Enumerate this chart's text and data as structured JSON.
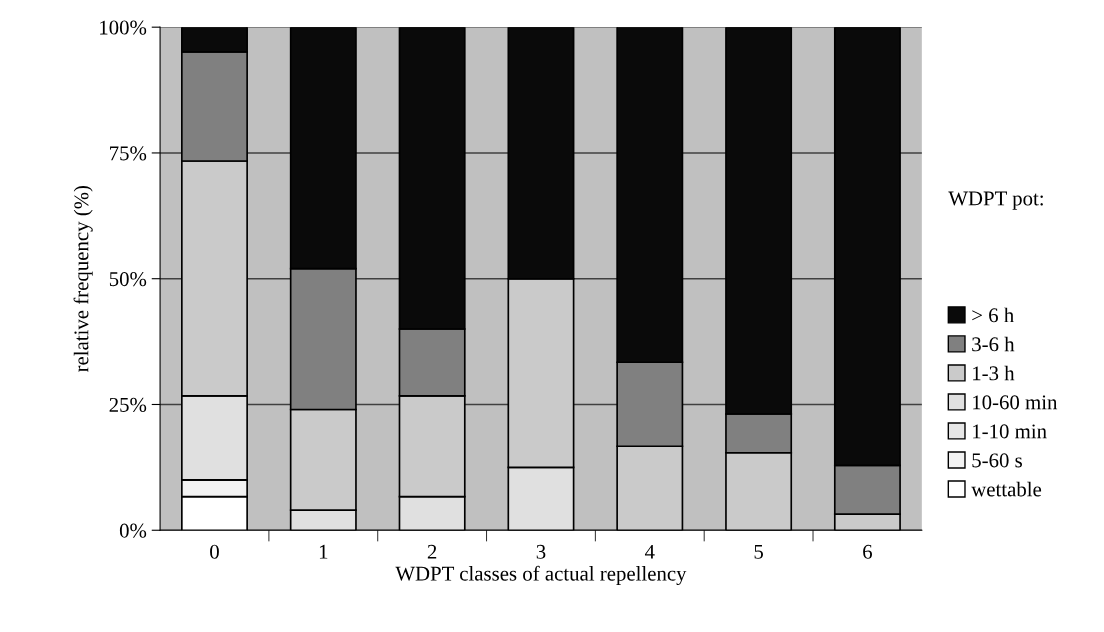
{
  "chart_data": {
    "type": "bar",
    "stacked": true,
    "xlabel": "WDPT classes of actual repellency",
    "ylabel": "relative frequency (%)",
    "legend_title": "WDPT pot:",
    "legend": "right",
    "grid": "y",
    "categories": [
      "0",
      "1",
      "2",
      "3",
      "4",
      "5",
      "6"
    ],
    "ylim": [
      0,
      100
    ],
    "yticks": [
      {
        "value": 0,
        "label": "0%"
      },
      {
        "value": 25,
        "label": "25%"
      },
      {
        "value": 50,
        "label": "50%"
      },
      {
        "value": 75,
        "label": "75%"
      },
      {
        "value": 100,
        "label": "100%"
      }
    ],
    "series": [
      {
        "name": "wettable",
        "color": "#ffffff",
        "values": [
          6.7,
          0,
          0,
          0,
          0,
          0,
          0
        ]
      },
      {
        "name": "5-60 s",
        "color": "#f2f2f2",
        "values": [
          3.3,
          0,
          0,
          0,
          0,
          0,
          0
        ]
      },
      {
        "name": "1-10 min",
        "color": "#e6e6e6",
        "values": [
          0,
          0,
          0,
          0,
          0,
          0,
          0
        ]
      },
      {
        "name": "10-60 min",
        "color": "#e0e0e0",
        "values": [
          16.7,
          4.0,
          6.7,
          12.5,
          0,
          0,
          0
        ]
      },
      {
        "name": "1-3 h",
        "color": "#cacaca",
        "values": [
          46.7,
          20.0,
          20.0,
          37.5,
          16.7,
          15.4,
          3.2
        ]
      },
      {
        "name": "3-6 h",
        "color": "#808080",
        "values": [
          21.7,
          28.0,
          13.3,
          0,
          16.7,
          7.7,
          9.7
        ]
      },
      {
        "name": "> 6 h",
        "color": "#0a0a0a",
        "values": [
          5.0,
          48.0,
          60.0,
          50.0,
          66.7,
          76.9,
          87.1
        ]
      }
    ]
  }
}
